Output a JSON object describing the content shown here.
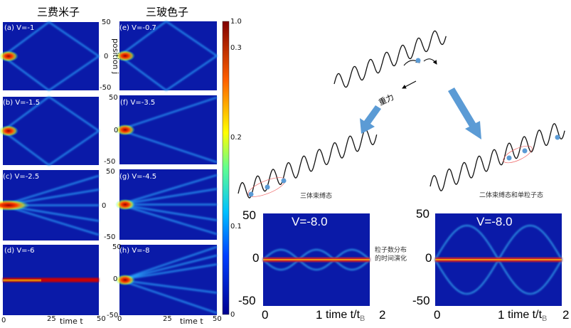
{
  "columns": {
    "fermions": "三费米子",
    "bosons": "三玻色子"
  },
  "panels": [
    {
      "label": "(a) V=-1"
    },
    {
      "label": "(b) V=-1.5"
    },
    {
      "label": "(c) V=-2.5"
    },
    {
      "label": "(d) V=-6"
    },
    {
      "label": "(e) V=-0.7"
    },
    {
      "label": "(f) V=-3.5"
    },
    {
      "label": "(g) V=-4.5"
    },
    {
      "label": "(h) V=-8"
    }
  ],
  "axes": {
    "ylabel": "position j",
    "y_top": "50",
    "y_mid": "0",
    "y_bot": "-50",
    "x_start": "0",
    "x_mid": "25",
    "x_end": "50",
    "xlabel": "time t"
  },
  "colorbar": {
    "ticks": [
      "1.0",
      "0.3",
      "0.2",
      "0.1",
      "0"
    ]
  },
  "schematic": {
    "gravity": "重力",
    "three_body": "三体束缚态",
    "two_plus_one": "二体束缚态和单粒子态",
    "evolution_line1": "粒子数分布",
    "evolution_line2": "的时间演化"
  },
  "big_plots": [
    {
      "label": "V=-8.0",
      "y_top": "50",
      "y_mid": "0",
      "y_bot": "-50",
      "x0": "0",
      "x1": "1",
      "xlabel": "time t/t",
      "xsub": "B",
      "x2": "2"
    },
    {
      "label": "V=-8.0",
      "y_top": "50",
      "y_mid": "0",
      "y_bot": "-50",
      "x0": "0",
      "x1": "1",
      "xlabel": "time t/t",
      "xsub": "B",
      "x2": "2"
    }
  ],
  "colors": {
    "heat_bg": "#0a1aa8",
    "accent_arrow": "#5b9bd5",
    "particle": "#5b9bd5"
  }
}
